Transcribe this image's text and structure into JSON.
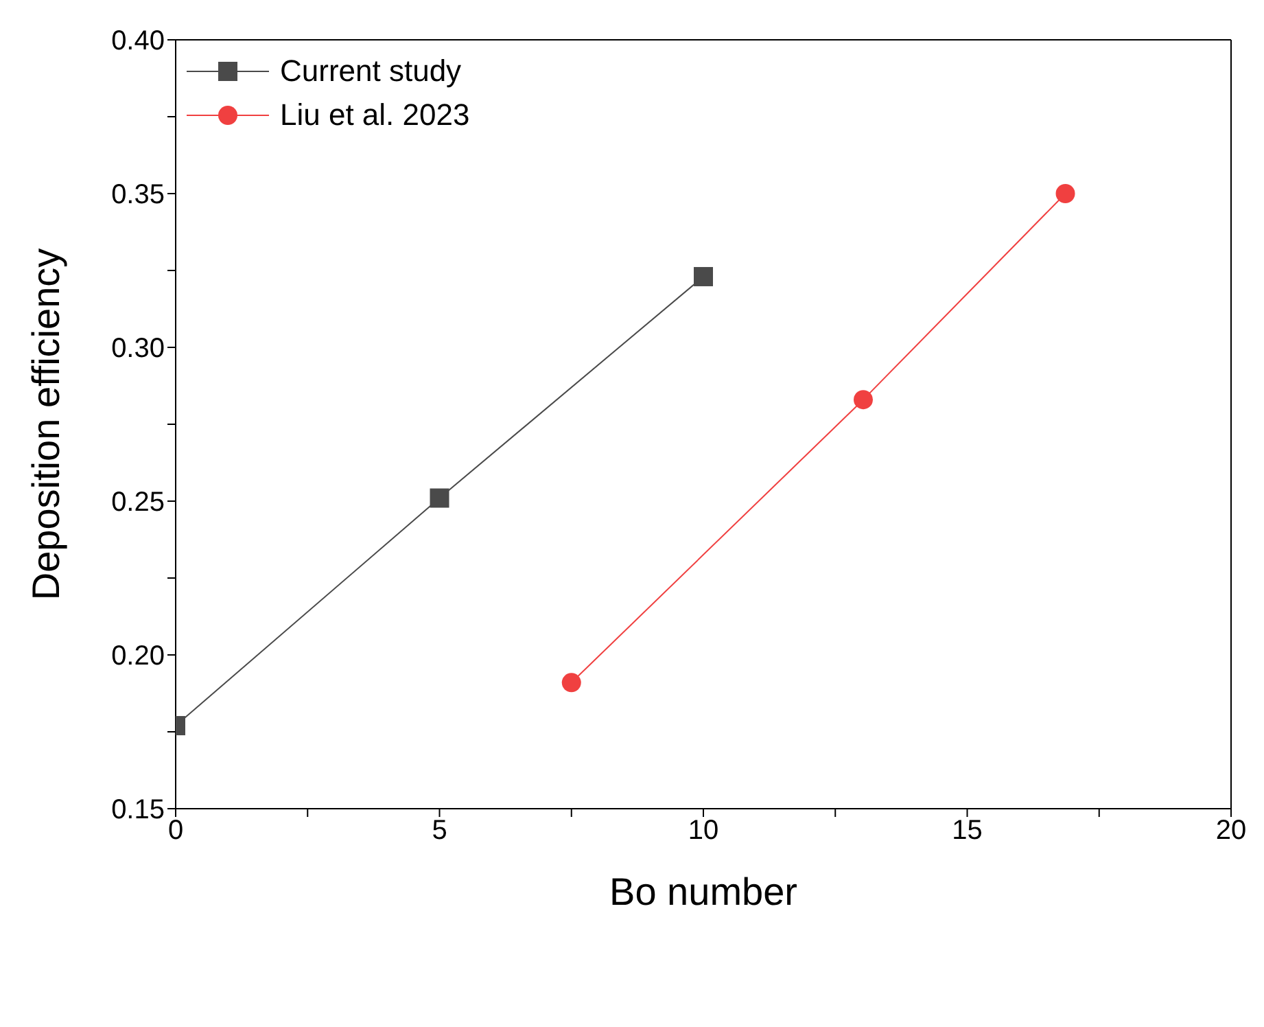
{
  "chart_data": {
    "type": "line",
    "xlabel": "Bo number",
    "ylabel": "Deposition efficiency",
    "xlim": [
      0,
      20
    ],
    "xticks": [
      0,
      {
        "value": 2.5,
        "label": null
      },
      5,
      {
        "value": 7.5,
        "label": null
      },
      10,
      {
        "value": 12.5,
        "label": null
      },
      15,
      {
        "value": 17.5,
        "label": null
      },
      20
    ],
    "ylim": [
      0.15,
      0.4
    ],
    "yticks": [
      {
        "value": 0.15,
        "label": "0.15"
      },
      {
        "value": 0.175,
        "label": null
      },
      {
        "value": 0.2,
        "label": "0.20"
      },
      {
        "value": 0.225,
        "label": null
      },
      {
        "value": 0.25,
        "label": "0.25"
      },
      {
        "value": 0.275,
        "label": null
      },
      {
        "value": 0.3,
        "label": "0.30"
      },
      {
        "value": 0.325,
        "label": null
      },
      {
        "value": 0.35,
        "label": "0.35"
      },
      {
        "value": 0.375,
        "label": null
      },
      {
        "value": 0.4,
        "label": "0.40"
      }
    ],
    "legend": "top left",
    "line_style": "solid",
    "series": [
      {
        "name": "Current study",
        "color": "#4a4a4a",
        "marker": "square",
        "x": [
          0,
          5,
          10
        ],
        "values": [
          0.177,
          0.251,
          0.323
        ]
      },
      {
        "name": "Liu et al. 2023",
        "color": "#f04040",
        "marker": "circle",
        "x": [
          7.5,
          13.03,
          16.86
        ],
        "values": [
          0.191,
          0.283,
          0.35
        ]
      }
    ]
  }
}
